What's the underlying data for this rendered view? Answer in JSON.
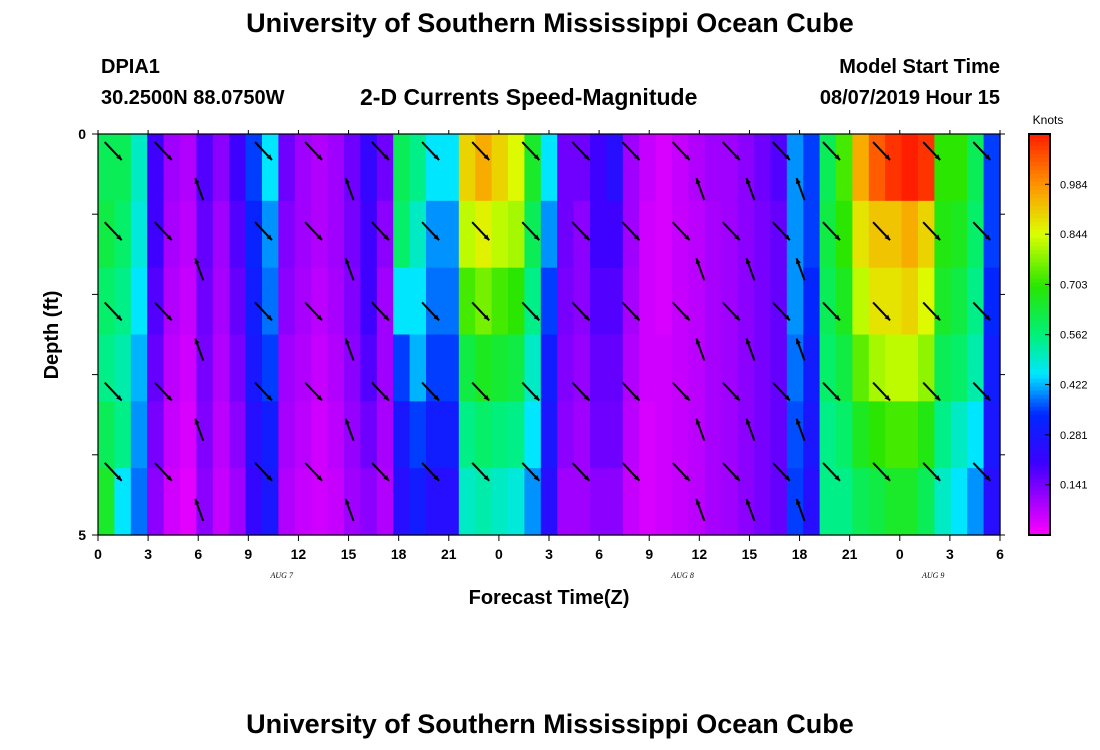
{
  "header": {
    "title": "University of Southern Mississippi Ocean Cube",
    "station_id": "DPIA1",
    "location": "30.2500N 88.0750W",
    "plot_title": "2-D Currents Speed-Magnitude",
    "start_label": "Model Start Time",
    "start_value": "08/07/2019 Hour 15"
  },
  "footer": {
    "title": "University of Southern Mississippi Ocean Cube"
  },
  "chart_data": {
    "type": "heatmap",
    "title": "2-D Currents Speed-Magnitude",
    "xlabel": "Forecast Time(Z)",
    "ylabel": "Depth (ft)",
    "x_ticks": [
      "0",
      "3",
      "6",
      "9",
      "12",
      "15",
      "18",
      "21",
      "0",
      "3",
      "6",
      "9",
      "12",
      "15",
      "18",
      "21",
      "0",
      "3",
      "6"
    ],
    "date_labels": [
      {
        "label": "AUG 7",
        "hour": 11
      },
      {
        "label": "AUG 8",
        "hour": 35
      },
      {
        "label": "AUG 9",
        "hour": 50
      }
    ],
    "y_ticks": [
      "0",
      "5"
    ],
    "depth_range": [
      0,
      5
    ],
    "hours_range": [
      0,
      54
    ],
    "colorbar": {
      "title": "Knots",
      "min": 0.0,
      "max": 1.125,
      "ticks": [
        "0.984",
        "0.844",
        "0.703",
        "0.562",
        "0.422",
        "0.281",
        "0.141"
      ]
    },
    "speed": [
      [
        0.6,
        0.62,
        0.58,
        0.55,
        0.6,
        0.65
      ],
      [
        0.6,
        0.58,
        0.55,
        0.52,
        0.55,
        0.45
      ],
      [
        0.5,
        0.48,
        0.45,
        0.42,
        0.4,
        0.38
      ],
      [
        0.2,
        0.2,
        0.18,
        0.16,
        0.14,
        0.12
      ],
      [
        0.1,
        0.09,
        0.08,
        0.07,
        0.06,
        0.05
      ],
      [
        0.08,
        0.07,
        0.06,
        0.05,
        0.04,
        0.03
      ],
      [
        0.18,
        0.16,
        0.15,
        0.14,
        0.13,
        0.12
      ],
      [
        0.12,
        0.1,
        0.09,
        0.08,
        0.07,
        0.06
      ],
      [
        0.2,
        0.18,
        0.16,
        0.14,
        0.12,
        0.1
      ],
      [
        0.35,
        0.32,
        0.3,
        0.28,
        0.25,
        0.22
      ],
      [
        0.45,
        0.4,
        0.38,
        0.35,
        0.3,
        0.28
      ],
      [
        0.15,
        0.13,
        0.12,
        0.1,
        0.09,
        0.08
      ],
      [
        0.1,
        0.1,
        0.09,
        0.08,
        0.07,
        0.06
      ],
      [
        0.08,
        0.08,
        0.07,
        0.06,
        0.05,
        0.05
      ],
      [
        0.1,
        0.1,
        0.09,
        0.08,
        0.07,
        0.06
      ],
      [
        0.15,
        0.14,
        0.13,
        0.12,
        0.11,
        0.1
      ],
      [
        0.22,
        0.2,
        0.2,
        0.18,
        0.15,
        0.12
      ],
      [
        0.15,
        0.12,
        0.1,
        0.1,
        0.09,
        0.08
      ],
      [
        0.6,
        0.58,
        0.45,
        0.35,
        0.28,
        0.25
      ],
      [
        0.55,
        0.5,
        0.45,
        0.42,
        0.35,
        0.3
      ],
      [
        0.45,
        0.4,
        0.38,
        0.35,
        0.3,
        0.25
      ],
      [
        0.45,
        0.4,
        0.38,
        0.35,
        0.3,
        0.25
      ],
      [
        0.9,
        0.82,
        0.72,
        0.62,
        0.55,
        0.5
      ],
      [
        0.95,
        0.86,
        0.76,
        0.66,
        0.58,
        0.52
      ],
      [
        0.9,
        0.82,
        0.72,
        0.64,
        0.56,
        0.5
      ],
      [
        0.85,
        0.8,
        0.7,
        0.62,
        0.55,
        0.48
      ],
      [
        0.65,
        0.6,
        0.55,
        0.5,
        0.45,
        0.4
      ],
      [
        0.45,
        0.4,
        0.35,
        0.3,
        0.28,
        0.25
      ],
      [
        0.15,
        0.15,
        0.14,
        0.13,
        0.12,
        0.1
      ],
      [
        0.15,
        0.12,
        0.12,
        0.11,
        0.1,
        0.1
      ],
      [
        0.2,
        0.2,
        0.18,
        0.16,
        0.15,
        0.12
      ],
      [
        0.25,
        0.2,
        0.18,
        0.16,
        0.15,
        0.12
      ],
      [
        0.1,
        0.1,
        0.09,
        0.08,
        0.07,
        0.06
      ],
      [
        0.06,
        0.05,
        0.05,
        0.05,
        0.04,
        0.04
      ],
      [
        0.04,
        0.04,
        0.04,
        0.05,
        0.05,
        0.05
      ],
      [
        0.06,
        0.06,
        0.06,
        0.06,
        0.06,
        0.06
      ],
      [
        0.08,
        0.07,
        0.07,
        0.07,
        0.07,
        0.07
      ],
      [
        0.1,
        0.09,
        0.09,
        0.09,
        0.09,
        0.09
      ],
      [
        0.1,
        0.1,
        0.1,
        0.1,
        0.1,
        0.1
      ],
      [
        0.12,
        0.12,
        0.12,
        0.12,
        0.12,
        0.12
      ],
      [
        0.15,
        0.14,
        0.14,
        0.14,
        0.14,
        0.14
      ],
      [
        0.18,
        0.16,
        0.16,
        0.16,
        0.16,
        0.16
      ],
      [
        0.4,
        0.4,
        0.4,
        0.38,
        0.36,
        0.35
      ],
      [
        0.35,
        0.35,
        0.33,
        0.3,
        0.28,
        0.25
      ],
      [
        0.6,
        0.62,
        0.6,
        0.58,
        0.55,
        0.55
      ],
      [
        0.72,
        0.7,
        0.66,
        0.62,
        0.58,
        0.55
      ],
      [
        0.95,
        0.88,
        0.82,
        0.74,
        0.66,
        0.6
      ],
      [
        1.05,
        0.92,
        0.88,
        0.8,
        0.7,
        0.62
      ],
      [
        1.1,
        0.92,
        0.88,
        0.82,
        0.72,
        0.65
      ],
      [
        1.2,
        0.95,
        0.9,
        0.82,
        0.72,
        0.65
      ],
      [
        1.1,
        0.9,
        0.85,
        0.78,
        0.68,
        0.6
      ],
      [
        0.7,
        0.68,
        0.65,
        0.6,
        0.55,
        0.5
      ],
      [
        0.7,
        0.66,
        0.62,
        0.58,
        0.5,
        0.45
      ],
      [
        0.6,
        0.58,
        0.55,
        0.52,
        0.45,
        0.4
      ],
      [
        0.35,
        0.35,
        0.33,
        0.3,
        0.28,
        0.25
      ]
    ],
    "vector_hours": [
      1,
      4,
      10,
      13,
      17,
      20,
      23,
      26,
      29,
      32,
      35,
      38,
      41,
      44,
      47,
      50,
      53
    ],
    "vector_hours_offset": [
      6,
      15,
      36,
      39,
      42
    ],
    "vector_depths": [
      0.1,
      1.1,
      2.1,
      3.1,
      4.1
    ],
    "vector_depths_offset": [
      0.6,
      1.6,
      2.6,
      3.6,
      4.6
    ],
    "vector_direction": "southeast",
    "offset_direction": "north-northwest"
  }
}
